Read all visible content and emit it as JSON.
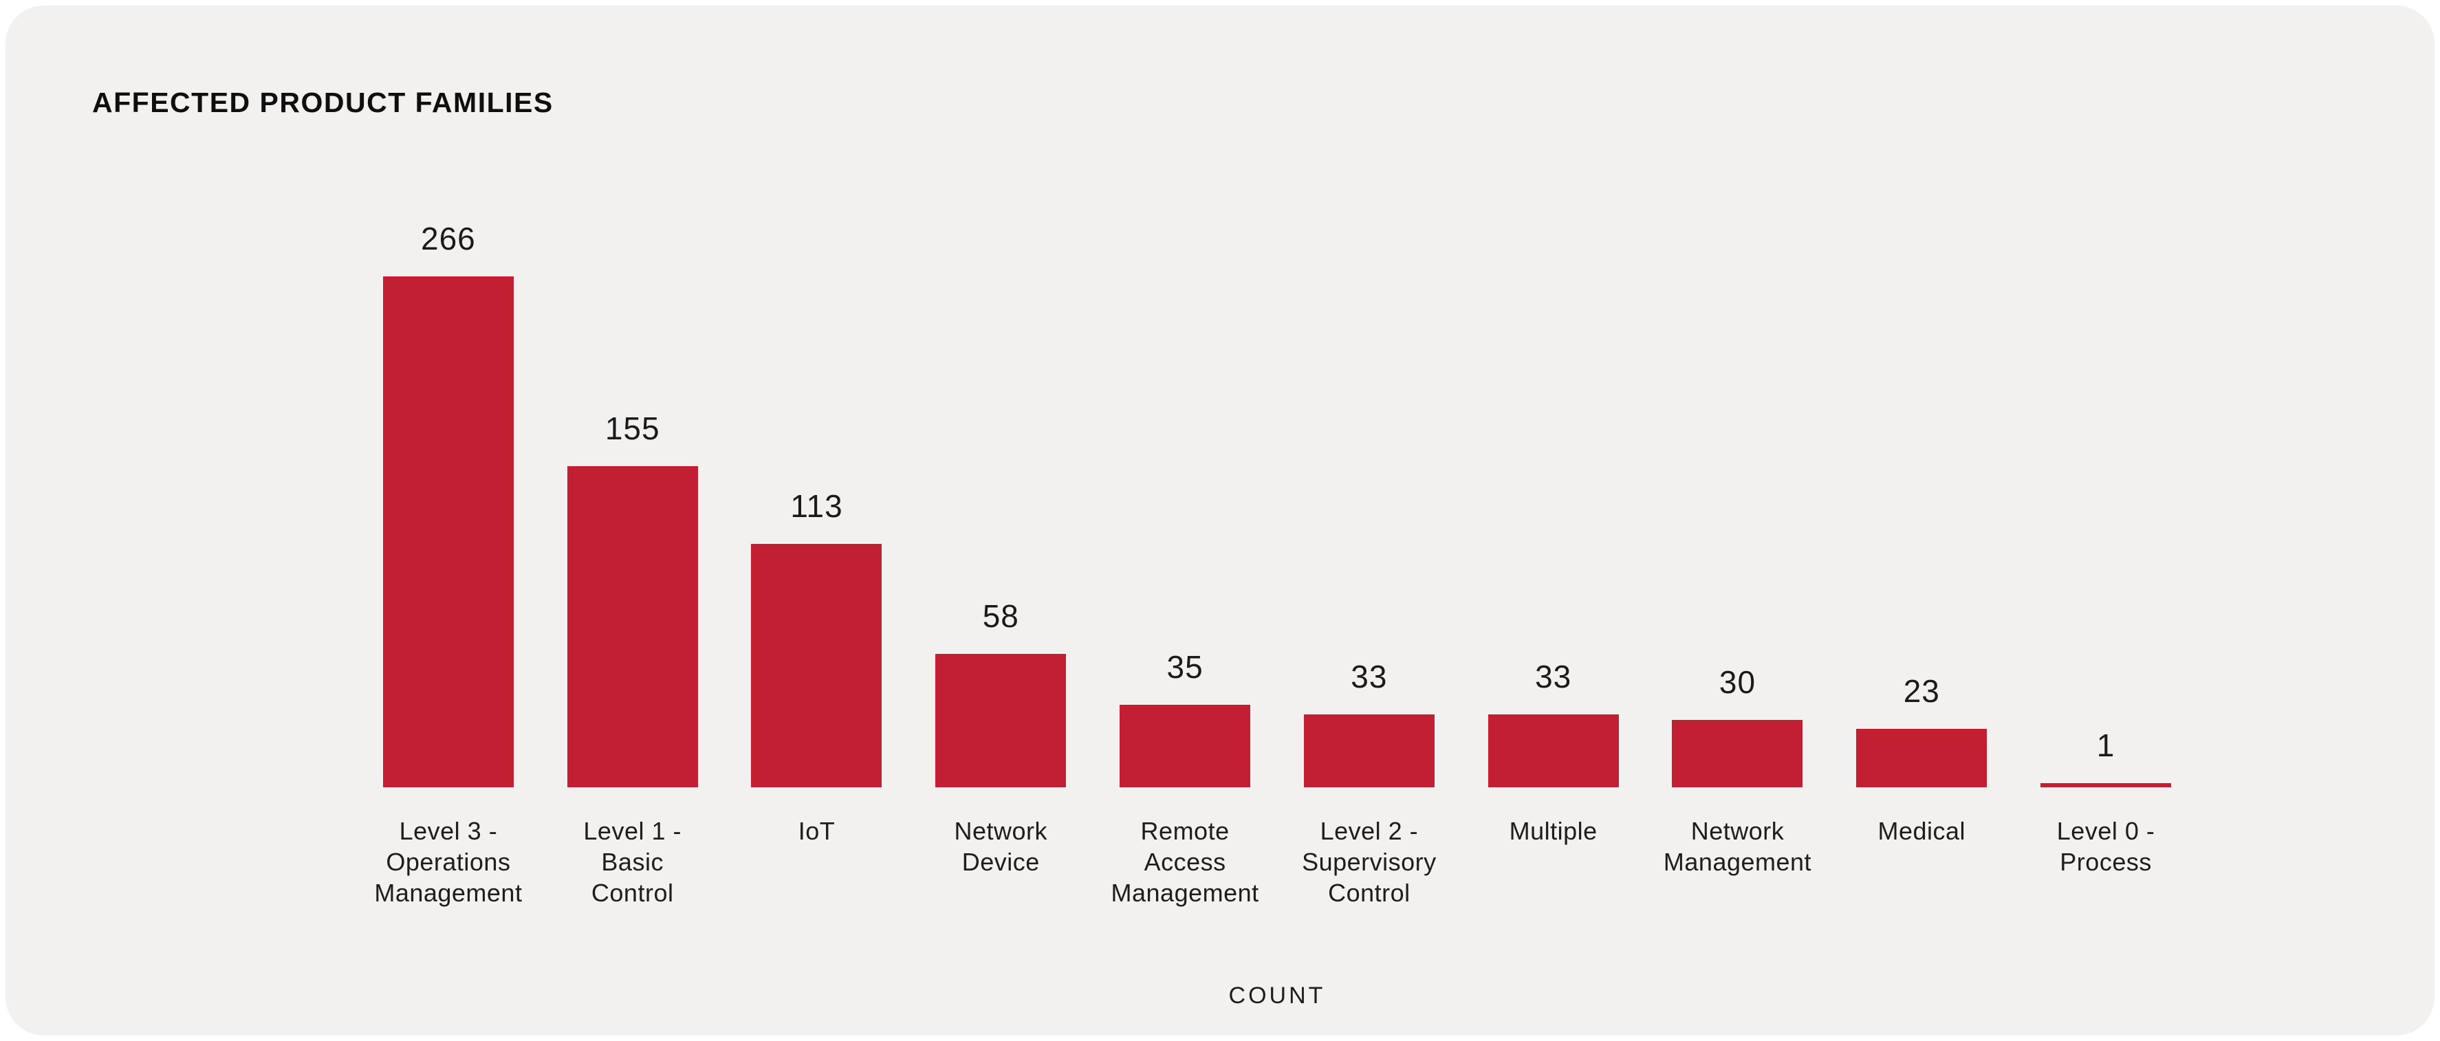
{
  "title": "AFFECTED PRODUCT FAMILIES",
  "chart_data": {
    "type": "bar",
    "title": "AFFECTED PRODUCT FAMILIES",
    "xlabel": "COUNT",
    "ylabel": "",
    "categories": [
      "Level 3 - Operations Management",
      "Level 1 - Basic Control",
      "IoT",
      "Network Device",
      "Remote Access Management",
      "Level 2 - Supervisory Control",
      "Multiple",
      "Network Management",
      "Medical",
      "Level 0 - Process"
    ],
    "values": [
      266,
      155,
      113,
      58,
      35,
      33,
      33,
      30,
      23,
      1
    ],
    "category_lines": [
      [
        "Level 3 -",
        "Operations",
        "Management"
      ],
      [
        "Level 1 -",
        "Basic",
        "Control"
      ],
      [
        "IoT"
      ],
      [
        "Network",
        "Device"
      ],
      [
        "Remote",
        "Access",
        "Management"
      ],
      [
        "Level 2 -",
        "Supervisory",
        "Control"
      ],
      [
        "Multiple"
      ],
      [
        "Network",
        "Management"
      ],
      [
        "Medical"
      ],
      [
        "Level 0 -",
        "Process"
      ]
    ],
    "value_labels_shown": true,
    "grid": false,
    "legend": null,
    "bar_color": "#C22032",
    "background_color": "#F2F1EF",
    "text_color": "#1D1D1D"
  }
}
